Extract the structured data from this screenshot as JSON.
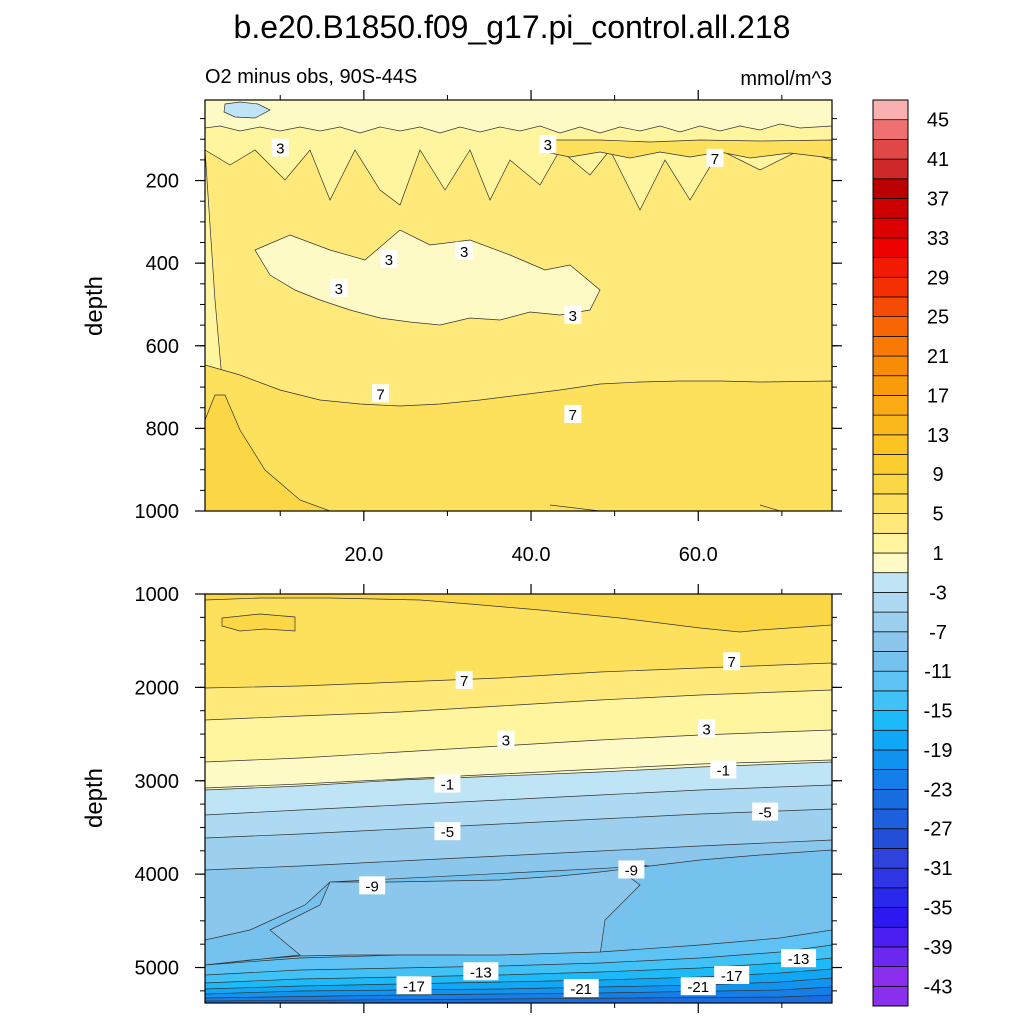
{
  "title": "b.e20.B1850.f09_g17.pi_control.all.218",
  "panel_left_label": "O2 minus obs, 90S-44S",
  "panel_right_label": "mmol/m^3",
  "colors": {
    "positive": [
      "#fefac6",
      "#fff59e",
      "#fee97a",
      "#fde05c",
      "#fcd745",
      "#fccd2e",
      "#fcc323",
      "#fbb81b",
      "#faaa12",
      "#f99c0b",
      "#f98c06",
      "#f87a05",
      "#f76505",
      "#f54c05",
      "#f43003",
      "#f21a02",
      "#ee0000",
      "#dd0000",
      "#cc0000",
      "#bb0000",
      "#cf2828",
      "#e04848",
      "#ee7070",
      "#f9b0b0"
    ],
    "negative": [
      "#bfe4f6",
      "#aed9f2",
      "#9dcfee",
      "#8bc7ec",
      "#75c2ef",
      "#5ec3f4",
      "#40c2f7",
      "#1cbaf9",
      "#10a8f6",
      "#1193f0",
      "#147fe9",
      "#186de1",
      "#1d5fdc",
      "#234fd8",
      "#2f42dc",
      "#3035e3",
      "#2a28ea",
      "#2e18f0",
      "#4b1ff2",
      "#6a28f0",
      "#8a2fee"
    ]
  },
  "chart_data": [
    {
      "type": "heatmap",
      "subtype": "filled-contour",
      "panel": "upper",
      "ylabel": "depth",
      "xlabel": "",
      "xlim": [
        1,
        76
      ],
      "ylim": [
        1000,
        5
      ],
      "y_inverted": true,
      "xticks": [
        "20.0",
        "40.0",
        "60.0"
      ],
      "xtick_values": [
        20,
        40,
        60
      ],
      "yticks": [
        "200",
        "400",
        "600",
        "800",
        "1000"
      ],
      "ytick_values": [
        200,
        400,
        600,
        800,
        1000
      ],
      "contour_labels": [
        {
          "text": "3",
          "x": 10,
          "y": 120
        },
        {
          "text": "3",
          "x": 42,
          "y": 112
        },
        {
          "text": "7",
          "x": 62,
          "y": 145
        },
        {
          "text": "3",
          "x": 23,
          "y": 390
        },
        {
          "text": "3",
          "x": 32,
          "y": 370
        },
        {
          "text": "3",
          "x": 17,
          "y": 460
        },
        {
          "text": "3",
          "x": 45,
          "y": 525
        },
        {
          "text": "7",
          "x": 22,
          "y": 715
        },
        {
          "text": "7",
          "x": 45,
          "y": 765
        }
      ]
    },
    {
      "type": "heatmap",
      "subtype": "filled-contour",
      "panel": "lower",
      "ylabel": "depth",
      "xlabel": "",
      "xlim": [
        1,
        76
      ],
      "ylim": [
        5380,
        1000
      ],
      "y_inverted": true,
      "yticks": [
        "1000",
        "2000",
        "3000",
        "4000",
        "5000"
      ],
      "ytick_values": [
        1000,
        2000,
        3000,
        4000,
        5000
      ],
      "contour_labels": [
        {
          "text": "7",
          "x": 32,
          "y": 1920
        },
        {
          "text": "7",
          "x": 64,
          "y": 1720
        },
        {
          "text": "3",
          "x": 37,
          "y": 2560
        },
        {
          "text": "3",
          "x": 61,
          "y": 2440
        },
        {
          "text": "-1",
          "x": 30,
          "y": 3030
        },
        {
          "text": "-1",
          "x": 63,
          "y": 2880
        },
        {
          "text": "-5",
          "x": 30,
          "y": 3540
        },
        {
          "text": "-5",
          "x": 68,
          "y": 3330
        },
        {
          "text": "-9",
          "x": 21,
          "y": 4120
        },
        {
          "text": "-9",
          "x": 52,
          "y": 3950
        },
        {
          "text": "-13",
          "x": 34,
          "y": 5040
        },
        {
          "text": "-13",
          "x": 72,
          "y": 4900
        },
        {
          "text": "-17",
          "x": 26,
          "y": 5190
        },
        {
          "text": "-17",
          "x": 64,
          "y": 5080
        },
        {
          "text": "-21",
          "x": 46,
          "y": 5220
        },
        {
          "text": "-21",
          "x": 60,
          "y": 5200
        }
      ]
    }
  ],
  "colorbar": {
    "units": "mmol/m^3",
    "min": -45,
    "max": 47,
    "levels": [
      -45,
      -43,
      -41,
      -39,
      -37,
      -35,
      -33,
      -31,
      -29,
      -27,
      -25,
      -23,
      -21,
      -19,
      -17,
      -15,
      -13,
      -11,
      -9,
      -7,
      -5,
      -3,
      -1,
      1,
      3,
      5,
      7,
      9,
      11,
      13,
      15,
      17,
      19,
      21,
      23,
      25,
      27,
      29,
      31,
      33,
      35,
      37,
      39,
      41,
      43,
      45,
      47
    ],
    "tick_labels": [
      "45",
      "41",
      "37",
      "33",
      "29",
      "25",
      "21",
      "17",
      "13",
      "9",
      "5",
      "1",
      "-3",
      "-7",
      "-11",
      "-15",
      "-19",
      "-23",
      "-27",
      "-31",
      "-35",
      "-39",
      "-43"
    ],
    "tick_values": [
      45,
      41,
      37,
      33,
      29,
      25,
      21,
      17,
      13,
      9,
      5,
      1,
      -3,
      -7,
      -11,
      -15,
      -19,
      -23,
      -27,
      -31,
      -35,
      -39,
      -43
    ]
  }
}
